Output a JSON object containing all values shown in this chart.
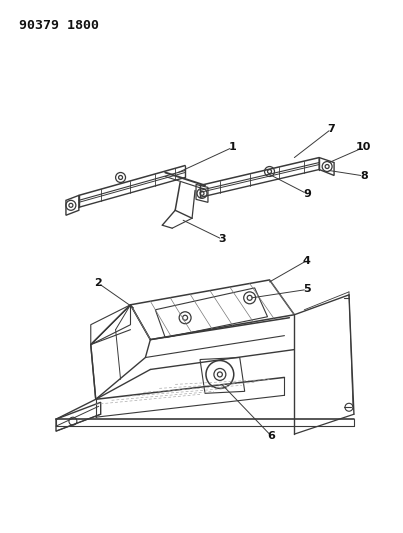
{
  "title": "90379 1800",
  "bg": "#ffffff",
  "lc": "#3a3a3a",
  "tc": "#111111",
  "figsize": [
    4.03,
    5.33
  ],
  "dpi": 100
}
